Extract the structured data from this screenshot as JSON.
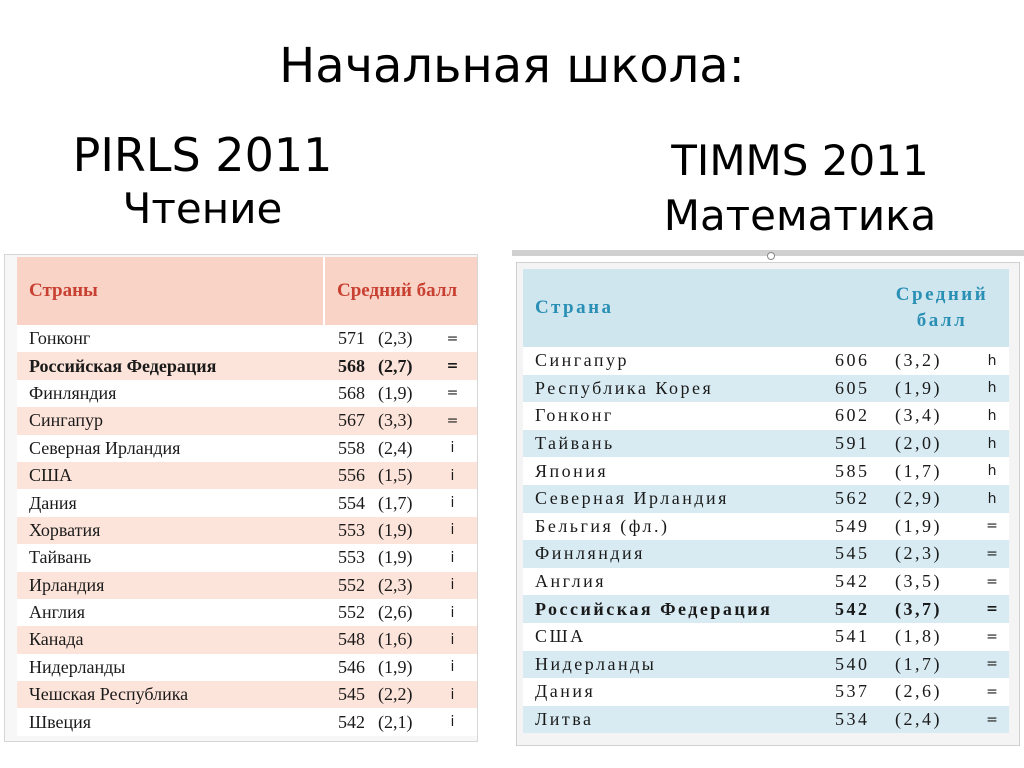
{
  "title": "Начальная школа:",
  "pirls": {
    "name": "PIRLS 2011",
    "subject": "Чтение",
    "header": {
      "country": "Страны",
      "score": "Средний балл"
    },
    "colors": {
      "header_bg": "#f9d3c6",
      "header_text": "#c84032",
      "stripe": "#fde4da"
    },
    "rows": [
      {
        "country": "Гонконг",
        "score": "571",
        "se": "(2,3)",
        "mark": "="
      },
      {
        "country": "Российская Федерация",
        "score": "568",
        "se": "(2,7)",
        "mark": "=",
        "highlight": true
      },
      {
        "country": "Финляндия",
        "score": "568",
        "se": "(1,9)",
        "mark": "="
      },
      {
        "country": "Сингапур",
        "score": "567",
        "se": "(3,3)",
        "mark": "="
      },
      {
        "country": "Северная Ирландия",
        "score": "558",
        "se": "(2,4)",
        "mark": "i"
      },
      {
        "country": "США",
        "score": "556",
        "se": "(1,5)",
        "mark": "i"
      },
      {
        "country": "Дания",
        "score": "554",
        "se": "(1,7)",
        "mark": "i"
      },
      {
        "country": "Хорватия",
        "score": "553",
        "se": "(1,9)",
        "mark": "i"
      },
      {
        "country": "Тайвань",
        "score": "553",
        "se": "(1,9)",
        "mark": "i"
      },
      {
        "country": "Ирландия",
        "score": "552",
        "se": "(2,3)",
        "mark": "i"
      },
      {
        "country": "Англия",
        "score": "552",
        "se": "(2,6)",
        "mark": "i"
      },
      {
        "country": "Канада",
        "score": "548",
        "se": "(1,6)",
        "mark": "i"
      },
      {
        "country": "Нидерланды",
        "score": "546",
        "se": "(1,9)",
        "mark": "i"
      },
      {
        "country": "Чешская Республика",
        "score": "545",
        "se": "(2,2)",
        "mark": "i"
      },
      {
        "country": "Швеция",
        "score": "542",
        "se": "(2,1)",
        "mark": "i"
      }
    ]
  },
  "timms": {
    "name": "TIMMS 2011",
    "subject": "Математика",
    "header": {
      "country": "Страна",
      "score_line1": "Средний",
      "score_line2": "балл"
    },
    "colors": {
      "header_bg": "#cfe6ef",
      "header_text": "#2a8fb4",
      "stripe": "#d8ebf2"
    },
    "rows": [
      {
        "country": "Сингапур",
        "score": "606",
        "se": "(3,2)",
        "mark": "h"
      },
      {
        "country": "Республика Корея",
        "score": "605",
        "se": "(1,9)",
        "mark": "h"
      },
      {
        "country": "Гонконг",
        "score": "602",
        "se": "(3,4)",
        "mark": "h"
      },
      {
        "country": "Тайвань",
        "score": "591",
        "se": "(2,0)",
        "mark": "h"
      },
      {
        "country": "Япония",
        "score": "585",
        "se": "(1,7)",
        "mark": "h"
      },
      {
        "country": "Северная Ирландия",
        "score": "562",
        "se": "(2,9)",
        "mark": "h"
      },
      {
        "country": "Бельгия (фл.)",
        "score": "549",
        "se": "(1,9)",
        "mark": "="
      },
      {
        "country": "Финляндия",
        "score": "545",
        "se": "(2,3)",
        "mark": "="
      },
      {
        "country": "Англия",
        "score": "542",
        "se": "(3,5)",
        "mark": "="
      },
      {
        "country": "Российская Федерация",
        "score": "542",
        "se": "(3,7)",
        "mark": "=",
        "highlight": true
      },
      {
        "country": "США",
        "score": "541",
        "se": "(1,8)",
        "mark": "="
      },
      {
        "country": "Нидерланды",
        "score": "540",
        "se": "(1,7)",
        "mark": "="
      },
      {
        "country": "Дания",
        "score": "537",
        "se": "(2,6)",
        "mark": "="
      },
      {
        "country": "Литва",
        "score": "534",
        "se": "(2,4)",
        "mark": "="
      }
    ]
  }
}
